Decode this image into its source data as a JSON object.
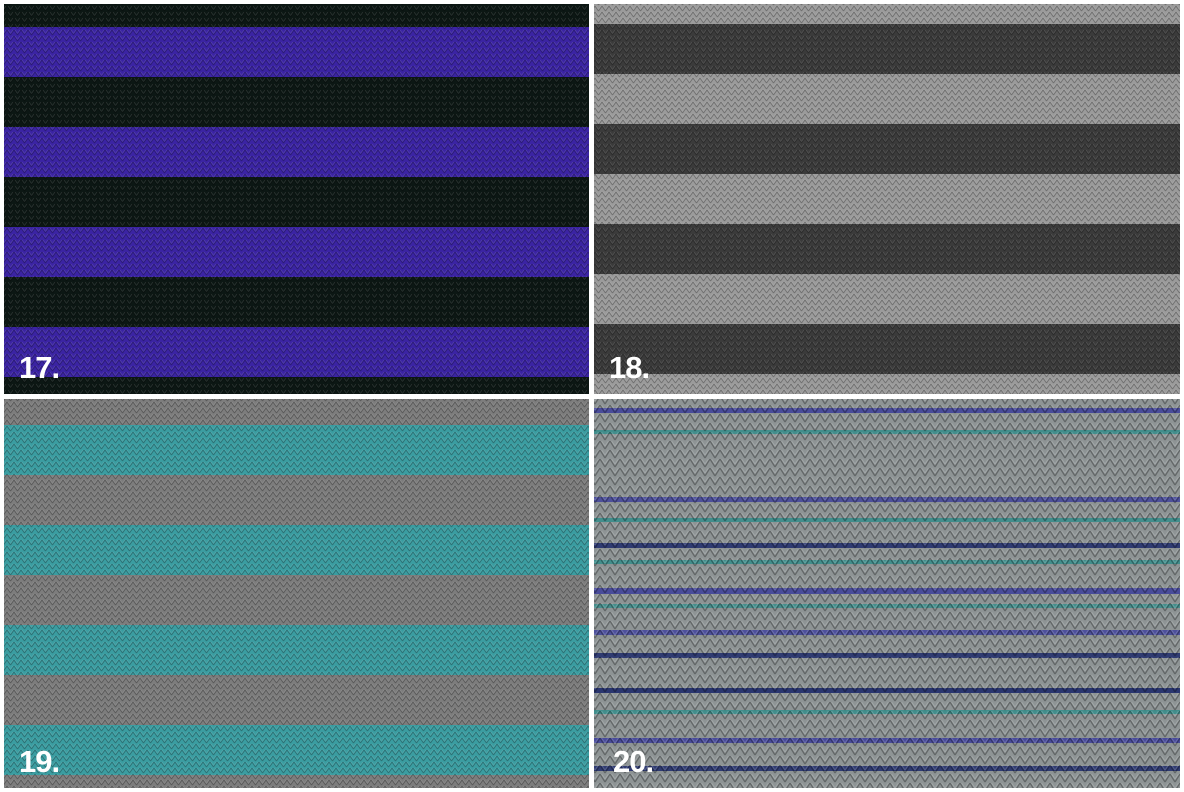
{
  "panels": [
    {
      "label": "17."
    },
    {
      "label": "18."
    },
    {
      "label": "19."
    },
    {
      "label": "20."
    }
  ]
}
